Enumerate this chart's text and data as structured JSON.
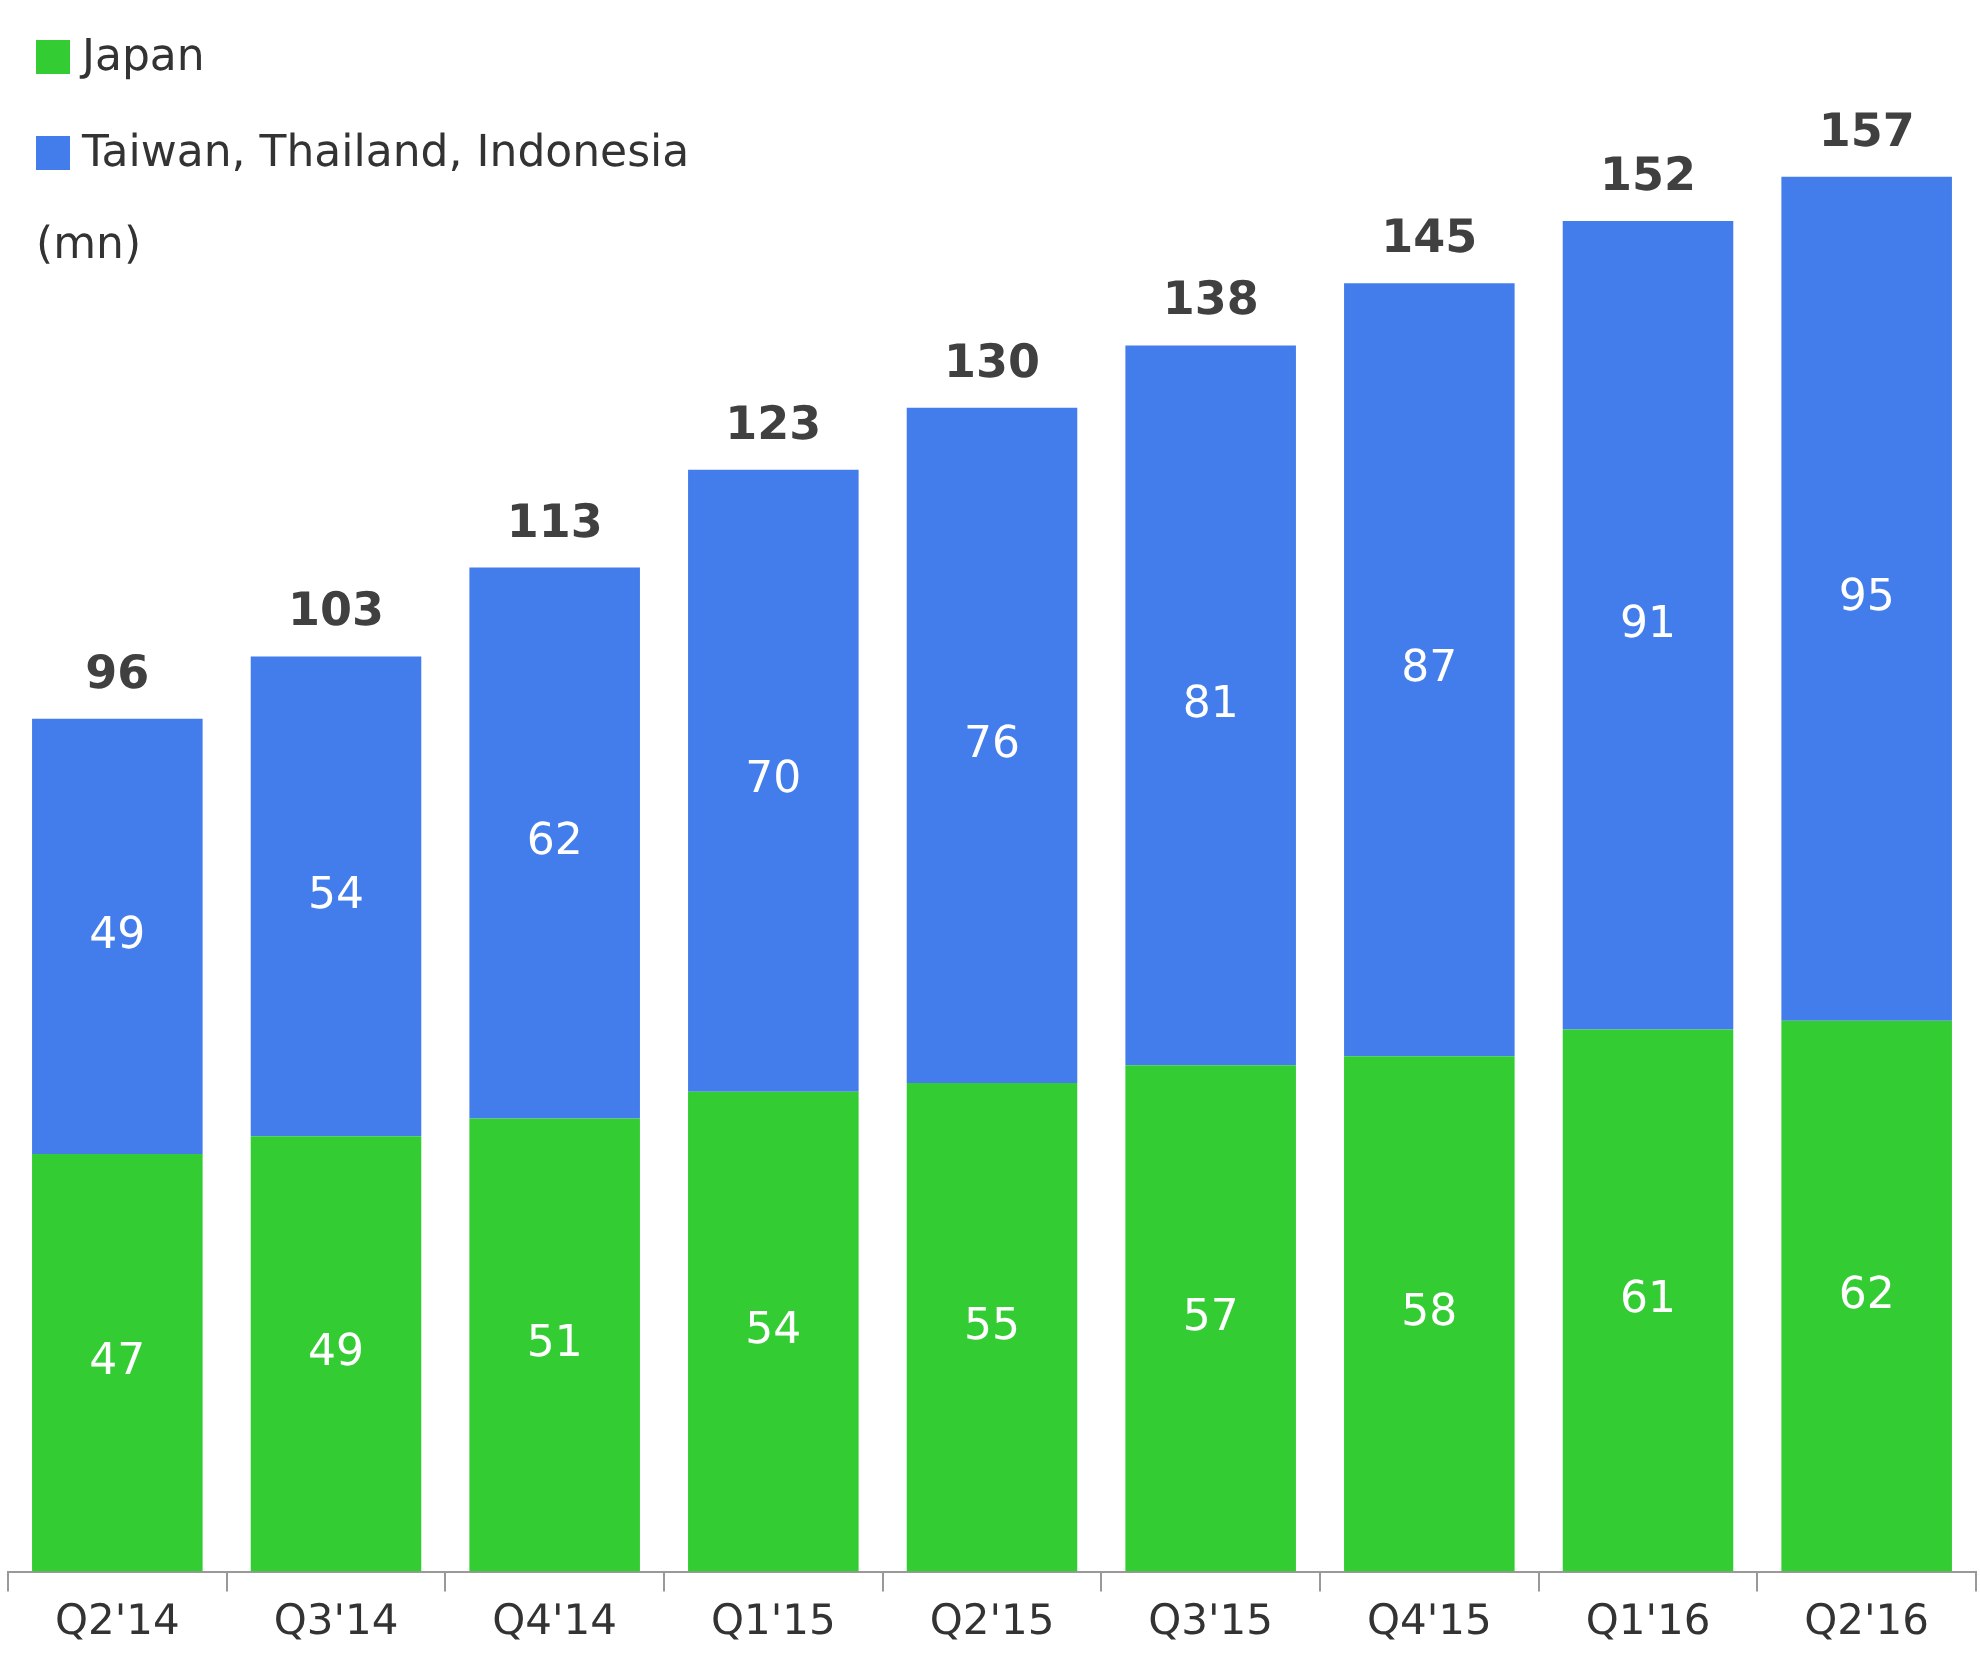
{
  "chart_data": {
    "type": "bar",
    "stacked": true,
    "ylabel": "(mn)",
    "legend": "top left",
    "data_labels": true,
    "tick_labels": "x",
    "categories": [
      "Q2'14",
      "Q3'14",
      "Q4'14",
      "Q1'15",
      "Q2'15",
      "Q3'15",
      "Q4'15",
      "Q1'16",
      "Q2'16"
    ],
    "series": [
      {
        "name": "Japan",
        "color": "#33cc33",
        "values": [
          47,
          49,
          51,
          54,
          55,
          57,
          58,
          61,
          62
        ]
      },
      {
        "name": "Taiwan, Thailand, Indonesia",
        "color": "#437deb",
        "values": [
          49,
          54,
          62,
          70,
          76,
          81,
          87,
          91,
          95
        ]
      }
    ],
    "totals": [
      "96",
      "103",
      "113",
      "123",
      "130",
      "138",
      "145",
      "152",
      "157"
    ]
  }
}
